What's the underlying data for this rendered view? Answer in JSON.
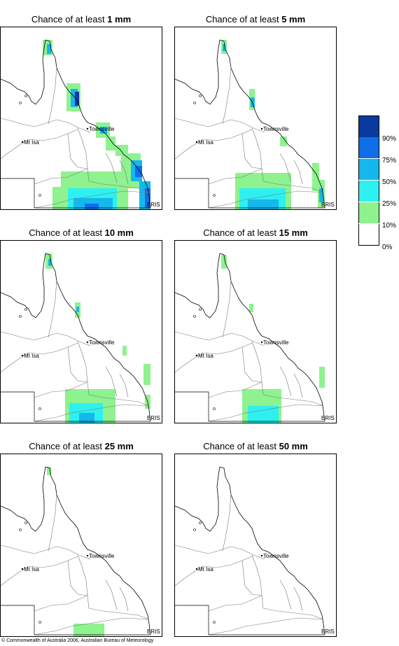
{
  "panels": [
    {
      "prefix": "Chance of at least ",
      "amount": "1 mm"
    },
    {
      "prefix": "Chance of at least ",
      "amount": "5 mm"
    },
    {
      "prefix": "Chance of at least ",
      "amount": "10 mm"
    },
    {
      "prefix": "Chance of at least ",
      "amount": "15 mm"
    },
    {
      "prefix": "Chance of at least ",
      "amount": "25 mm"
    },
    {
      "prefix": "Chance of at least ",
      "amount": "50 mm"
    }
  ],
  "places": {
    "townsville": "Townsville",
    "mtisa": "Mt Isa",
    "bris": "BRIS"
  },
  "legend": {
    "labels": [
      "90%",
      "75%",
      "50%",
      "25%",
      "10%",
      "0%"
    ],
    "colors": [
      "#0a3a9e",
      "#0f6ee8",
      "#14b8ec",
      "#2ef0f0",
      "#8ef28e",
      "#ffffff"
    ]
  },
  "footer": "© Commonwealth of Australia 2006, Australian Bureau of Meteorology"
}
